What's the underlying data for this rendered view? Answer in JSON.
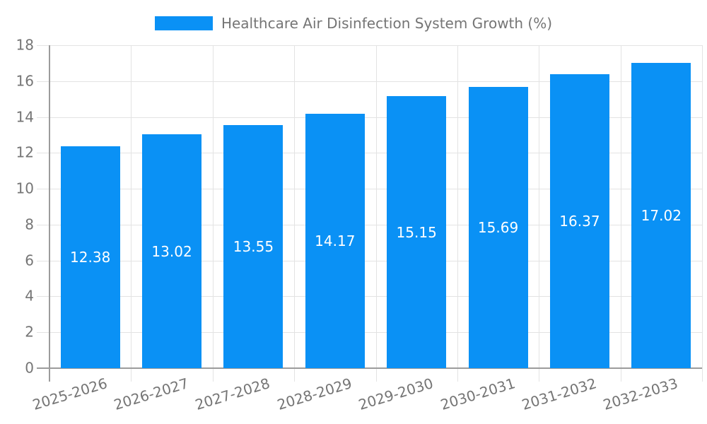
{
  "chart_data": {
    "type": "bar",
    "title": "Healthcare Air Disinfection System Growth (%)",
    "legend": [
      "Healthcare Air Disinfection System Growth (%)"
    ],
    "legend_position": "top-center",
    "categories": [
      "2025-2026",
      "2026-2027",
      "2027-2028",
      "2028-2029",
      "2029-2030",
      "2030-2031",
      "2031-2032",
      "2032-2033"
    ],
    "values": [
      12.38,
      13.02,
      13.55,
      14.17,
      15.15,
      15.69,
      16.37,
      17.02
    ],
    "value_labels": [
      "12.38",
      "13.02",
      "13.55",
      "14.17",
      "15.15",
      "15.69",
      "16.37",
      "17.02"
    ],
    "xlabel": "",
    "ylabel": "",
    "ylim": [
      0,
      18
    ],
    "yticks": [
      0,
      2,
      4,
      6,
      8,
      10,
      12,
      14,
      16,
      18
    ],
    "grid": true,
    "colors": {
      "bar": "#0a91f5",
      "value_label": "#ffffff",
      "tick_label": "#757575",
      "legend_text": "#757575",
      "gridline": "#e3e3e3",
      "axis_line": "#9c9c9c",
      "background": "#ffffff"
    }
  }
}
